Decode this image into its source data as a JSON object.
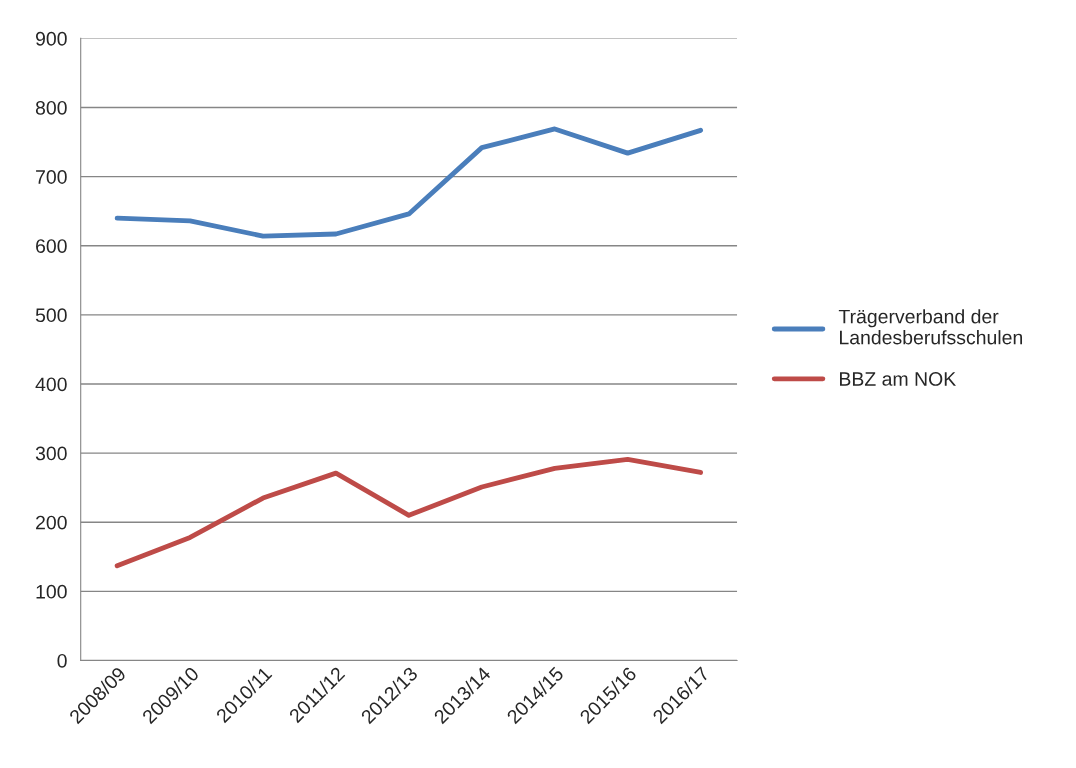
{
  "chart_data": {
    "type": "line",
    "categories": [
      "2008/09",
      "2009/10",
      "2010/11",
      "2011/12",
      "2012/13",
      "2013/14",
      "2014/15",
      "2015/16",
      "2016/17"
    ],
    "series": [
      {
        "name": "Trägerverband der Landesberufsschulen",
        "color": "#4a7ebb",
        "values": [
          640,
          636,
          614,
          617,
          646,
          742,
          769,
          734,
          767
        ]
      },
      {
        "name": "BBZ am NOK",
        "color": "#be4b48",
        "values": [
          137,
          178,
          235,
          271,
          210,
          251,
          278,
          291,
          272
        ]
      }
    ],
    "ylim": [
      0,
      900
    ],
    "yticks": [
      0,
      100,
      200,
      300,
      400,
      500,
      600,
      700,
      800,
      900
    ],
    "grid": "y",
    "legend": "right",
    "marker": "none",
    "line_style": "solid"
  }
}
